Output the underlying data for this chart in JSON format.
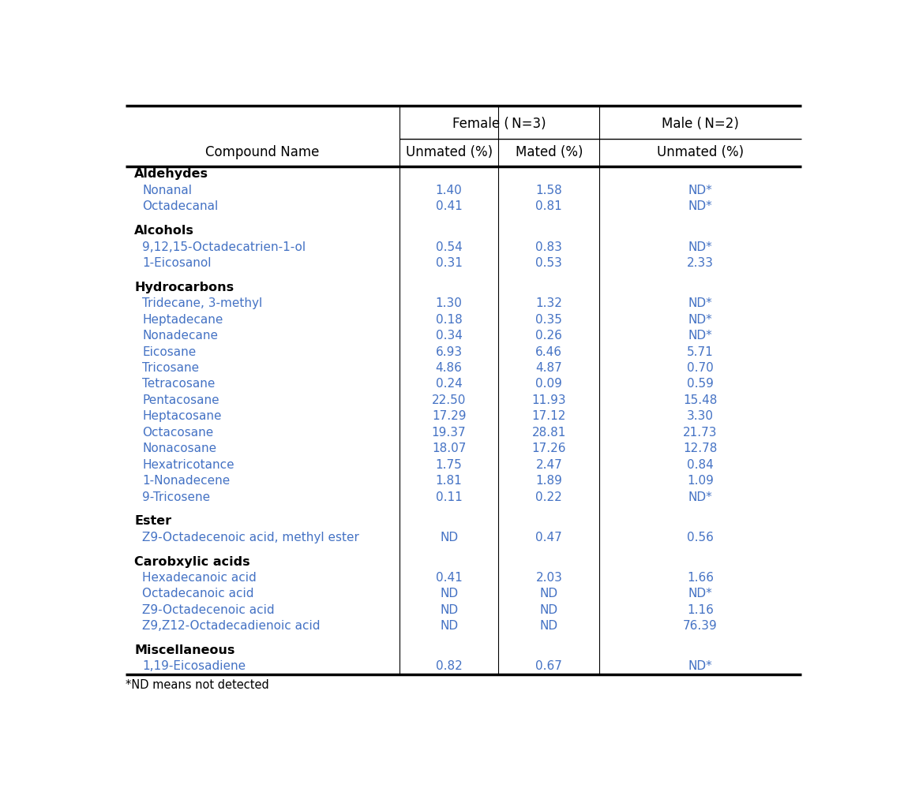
{
  "title_note": "*ND means not detected",
  "header_row1_female": "Female (N=3)",
  "header_row1_male": "Male (N=2)",
  "header_row2": [
    "Compound Name",
    "Unmated (%)",
    "Mated (%)",
    "Unmated (%)"
  ],
  "sections": [
    {
      "category": "Aldehydes",
      "rows": [
        {
          "name": "Nonanal",
          "unmated_f": "1.40",
          "mated_f": "1.58",
          "unmated_m": "ND*"
        },
        {
          "name": "Octadecanal",
          "unmated_f": "0.41",
          "mated_f": "0.81",
          "unmated_m": "ND*"
        }
      ]
    },
    {
      "category": "Alcohols",
      "rows": [
        {
          "name": "9,12,15-Octadecatrien-1-ol",
          "unmated_f": "0.54",
          "mated_f": "0.83",
          "unmated_m": "ND*"
        },
        {
          "name": "1-Eicosanol",
          "unmated_f": "0.31",
          "mated_f": "0.53",
          "unmated_m": "2.33"
        }
      ]
    },
    {
      "category": "Hydrocarbons",
      "rows": [
        {
          "name": "Tridecane, 3-methyl",
          "unmated_f": "1.30",
          "mated_f": "1.32",
          "unmated_m": "ND*"
        },
        {
          "name": "Heptadecane",
          "unmated_f": "0.18",
          "mated_f": "0.35",
          "unmated_m": "ND*"
        },
        {
          "name": "Nonadecane",
          "unmated_f": "0.34",
          "mated_f": "0.26",
          "unmated_m": "ND*"
        },
        {
          "name": "Eicosane",
          "unmated_f": "6.93",
          "mated_f": "6.46",
          "unmated_m": "5.71"
        },
        {
          "name": "Tricosane",
          "unmated_f": "4.86",
          "mated_f": "4.87",
          "unmated_m": "0.70"
        },
        {
          "name": "Tetracosane",
          "unmated_f": "0.24",
          "mated_f": "0.09",
          "unmated_m": "0.59"
        },
        {
          "name": "Pentacosane",
          "unmated_f": "22.50",
          "mated_f": "11.93",
          "unmated_m": "15.48"
        },
        {
          "name": "Heptacosane",
          "unmated_f": "17.29",
          "mated_f": "17.12",
          "unmated_m": "3.30"
        },
        {
          "name": "Octacosane",
          "unmated_f": "19.37",
          "mated_f": "28.81",
          "unmated_m": "21.73"
        },
        {
          "name": "Nonacosane",
          "unmated_f": "18.07",
          "mated_f": "17.26",
          "unmated_m": "12.78"
        },
        {
          "name": "Hexatricotance",
          "unmated_f": "1.75",
          "mated_f": "2.47",
          "unmated_m": "0.84"
        },
        {
          "name": "1-Nonadecene",
          "unmated_f": "1.81",
          "mated_f": "1.89",
          "unmated_m": "1.09"
        },
        {
          "name": "9-Tricosene",
          "unmated_f": "0.11",
          "mated_f": "0.22",
          "unmated_m": "ND*"
        }
      ]
    },
    {
      "category": "Ester",
      "rows": [
        {
          "name": "Z9-Octadecenoic acid, methyl ester",
          "unmated_f": "ND",
          "mated_f": "0.47",
          "unmated_m": "0.56"
        }
      ]
    },
    {
      "category": "Carobxylic acids",
      "rows": [
        {
          "name": "Hexadecanoic acid",
          "unmated_f": "0.41",
          "mated_f": "2.03",
          "unmated_m": "1.66"
        },
        {
          "name": "Octadecanoic acid",
          "unmated_f": "ND",
          "mated_f": "ND",
          "unmated_m": "ND*"
        },
        {
          "name": "Z9-Octadecenoic acid",
          "unmated_f": "ND",
          "mated_f": "ND",
          "unmated_m": "1.16"
        },
        {
          "name": "Z9,Z12-Octadecadienoic acid",
          "unmated_f": "ND",
          "mated_f": "ND",
          "unmated_m": "76.39"
        }
      ]
    },
    {
      "category": "Miscellaneous",
      "rows": [
        {
          "name": "1,19-Eicosadiene",
          "unmated_f": "0.82",
          "mated_f": "0.67",
          "unmated_m": "ND*"
        }
      ]
    }
  ],
  "bg_color": "#ffffff",
  "header_color": "#000000",
  "data_color": "#4472C4",
  "category_color": "#000000",
  "line_color": "#000000",
  "font_family": "DejaVu Sans"
}
